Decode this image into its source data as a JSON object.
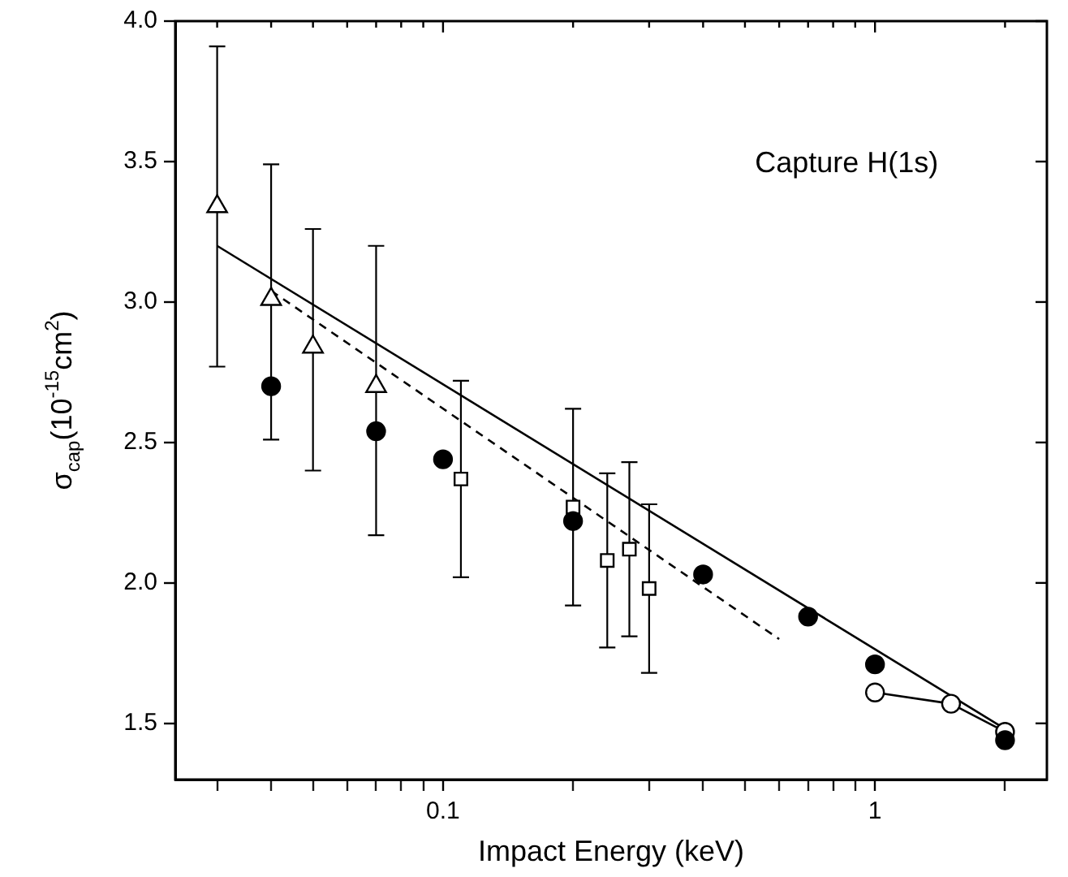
{
  "chart_data": {
    "type": "scatter",
    "xlabel": "Impact Energy (keV)",
    "ylabel": "σ$_{cap}$(10$^{-15}$cm$^{2}$)",
    "annotations": [
      "Capture H(1s)"
    ],
    "log": "x",
    "grid": false,
    "legend": false,
    "xlim": [
      0.024,
      2.5
    ],
    "ylim": [
      1.3,
      4.0
    ],
    "xticks": [
      {
        "value": 0.03,
        "label": null
      },
      {
        "value": 0.04,
        "label": null
      },
      {
        "value": 0.05,
        "label": null
      },
      {
        "value": 0.06,
        "label": null
      },
      {
        "value": 0.07,
        "label": null
      },
      {
        "value": 0.08,
        "label": null
      },
      {
        "value": 0.09,
        "label": null
      },
      0.1,
      {
        "value": 0.2,
        "label": null
      },
      {
        "value": 0.3,
        "label": null
      },
      {
        "value": 0.4,
        "label": null
      },
      {
        "value": 0.5,
        "label": null
      },
      {
        "value": 0.6,
        "label": null
      },
      {
        "value": 0.7,
        "label": null
      },
      {
        "value": 0.8,
        "label": null
      },
      {
        "value": 0.9,
        "label": null
      },
      1,
      {
        "value": 2,
        "label": null
      }
    ],
    "yticks": [
      {
        "value": 1.5,
        "label": "1.5"
      },
      {
        "value": 2,
        "label": "2.0"
      },
      {
        "value": 2.5,
        "label": "2.5"
      },
      {
        "value": 3,
        "label": "3.0"
      },
      {
        "value": 3.5,
        "label": "3.5"
      },
      {
        "value": 4,
        "label": "4.0"
      }
    ],
    "series": [
      {
        "type": "scatter",
        "marker": "triangle",
        "color": "#000000",
        "x": [
          0.03,
          0.04,
          0.05,
          0.07
        ],
        "values": [
          3.34,
          3.01,
          2.84,
          2.7
        ],
        "errors": [
          [
            2.77,
            3.91
          ],
          [
            2.51,
            3.49
          ],
          [
            2.4,
            3.26
          ],
          [
            2.17,
            3.2
          ]
        ]
      },
      {
        "type": "scatter",
        "marker": "circle",
        "color": "#000000",
        "x": [
          0.04,
          0.07,
          0.1,
          0.2,
          0.4,
          0.7,
          1,
          2
        ],
        "values": [
          2.7,
          2.54,
          2.44,
          2.22,
          2.03,
          1.88,
          1.71,
          1.44
        ]
      },
      {
        "type": "scatter",
        "marker": "square",
        "color": "#000000",
        "x": [
          0.11,
          0.2,
          0.24,
          0.27,
          0.3
        ],
        "values": [
          2.37,
          2.27,
          2.08,
          2.12,
          1.98
        ],
        "errors": [
          [
            2.02,
            2.72
          ],
          [
            1.92,
            2.62
          ],
          [
            1.77,
            2.39
          ],
          [
            1.81,
            2.43
          ],
          [
            1.68,
            2.28
          ]
        ]
      },
      {
        "type": "line",
        "marker": "circle",
        "line_style": "solid",
        "color": "#000000",
        "x": [
          1,
          1.5,
          2
        ],
        "values": [
          1.61,
          1.57,
          1.47
        ]
      },
      {
        "type": "line",
        "marker": "none",
        "line_style": "solid",
        "color": "#000000",
        "x": [
          0.03,
          2
        ],
        "values": [
          3.2,
          1.48
        ]
      },
      {
        "type": "line",
        "marker": "none",
        "line_style": "dashed",
        "color": "#000000",
        "x": [
          0.04,
          0.6
        ],
        "values": [
          3.04,
          1.8
        ]
      }
    ]
  }
}
